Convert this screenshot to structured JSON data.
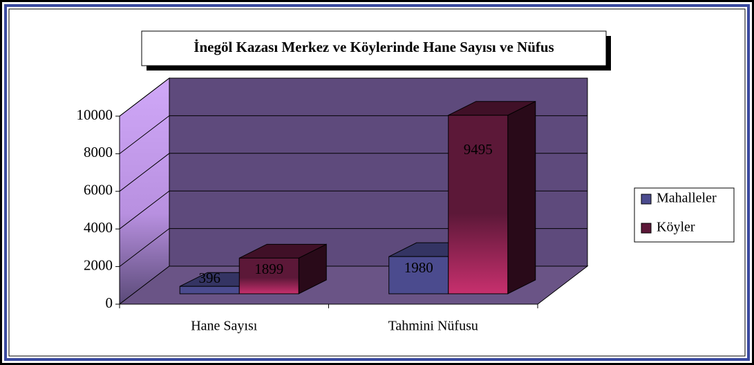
{
  "chart_data": {
    "type": "bar3d",
    "title": "İnegöl Kazası Merkez ve Köylerinde Hane Sayısı ve Nüfus",
    "categories": [
      "Hane Sayısı",
      "Tahmini Nüfusu"
    ],
    "series": [
      {
        "name": "Mahalleler",
        "color": "#4b4b8e",
        "values": [
          396,
          1980
        ]
      },
      {
        "name": "Köyler",
        "color": "#5c1838",
        "values": [
          1899,
          9495
        ]
      }
    ],
    "ylim": [
      0,
      10000
    ],
    "yticks": [
      0,
      2000,
      4000,
      6000,
      8000,
      10000
    ],
    "grid": true,
    "legend": "right"
  }
}
